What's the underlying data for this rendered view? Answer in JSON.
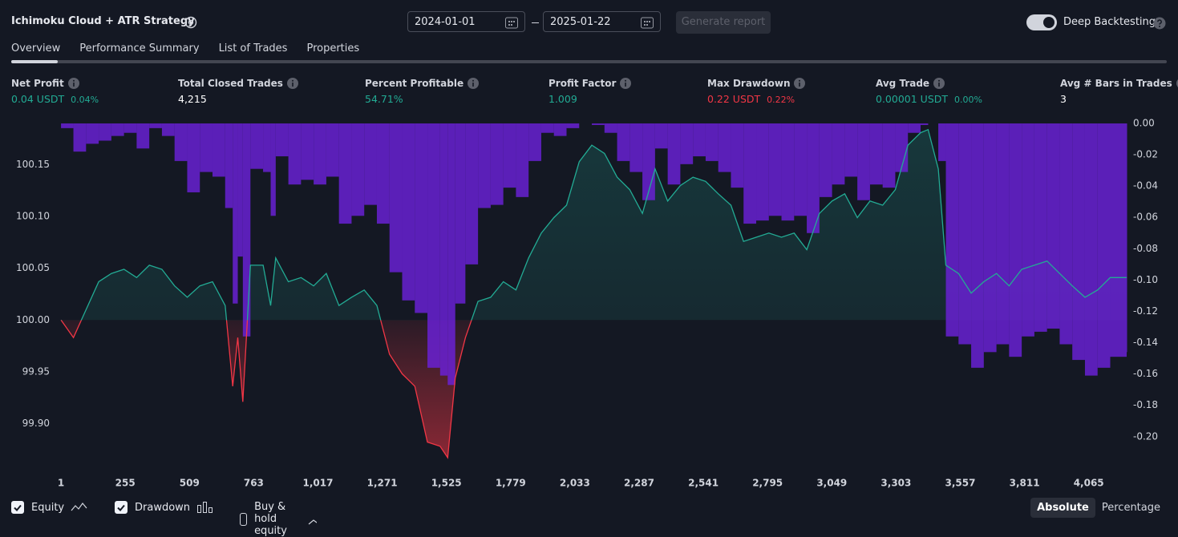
{
  "header": {
    "title": "Ichimoku Cloud + ATR Strategy",
    "start_date": "2024-01-01",
    "end_date": "2025-01-22",
    "generate_button": "Generate report",
    "toggle_label": "Deep Backtesting",
    "toggle_on": true
  },
  "tabs": [
    "Overview",
    "Performance Summary",
    "List of Trades",
    "Properties"
  ],
  "metrics": [
    {
      "label": "Net Profit",
      "value": "0.04 USDT",
      "percent": "0.04%",
      "color": "#22ab94"
    },
    {
      "label": "Total Closed Trades",
      "value": "4,215",
      "color": "#ffffff"
    },
    {
      "label": "Percent Profitable",
      "value": "54.71%",
      "color": "#22ab94"
    },
    {
      "label": "Profit Factor",
      "value": "1.009",
      "color": "#22ab94"
    },
    {
      "label": "Max Drawdown",
      "value": "0.22 USDT",
      "percent": "0.22%",
      "color": "#f23645"
    },
    {
      "label": "Avg Trade",
      "value": "0.00001 USDT",
      "percent": "0.00%",
      "color": "#22ab94"
    },
    {
      "label": "Avg # Bars in Trades",
      "value": "3",
      "color": "#ffffff"
    }
  ],
  "chart_data": {
    "type": "line",
    "x": [
      1,
      50,
      100,
      150,
      200,
      250,
      300,
      350,
      400,
      450,
      500,
      550,
      600,
      650,
      680,
      700,
      720,
      750,
      800,
      830,
      850,
      900,
      950,
      1000,
      1050,
      1100,
      1150,
      1200,
      1250,
      1300,
      1350,
      1400,
      1450,
      1500,
      1530,
      1560,
      1600,
      1650,
      1700,
      1750,
      1800,
      1850,
      1900,
      1950,
      2000,
      2050,
      2100,
      2150,
      2200,
      2250,
      2300,
      2350,
      2400,
      2450,
      2500,
      2550,
      2600,
      2650,
      2700,
      2750,
      2800,
      2850,
      2900,
      2950,
      3000,
      3050,
      3100,
      3150,
      3200,
      3250,
      3300,
      3350,
      3400,
      3430,
      3470,
      3500,
      3550,
      3600,
      3650,
      3700,
      3750,
      3800,
      3850,
      3900,
      3950,
      4000,
      4050,
      4100,
      4150,
      4215
    ],
    "series": [
      {
        "name": "Equity",
        "color": "#22ab94",
        "negative_color": "#f23645",
        "visible": true,
        "values": [
          100.0,
          99.983,
          100.01,
          100.037,
          100.045,
          100.049,
          100.041,
          100.053,
          100.049,
          100.033,
          100.022,
          100.033,
          100.037,
          100.014,
          99.936,
          99.983,
          99.921,
          100.053,
          100.053,
          100.014,
          100.06,
          100.037,
          100.041,
          100.033,
          100.045,
          100.014,
          100.022,
          100.029,
          100.014,
          99.967,
          99.948,
          99.936,
          99.882,
          99.878,
          99.867,
          99.944,
          99.983,
          100.018,
          100.022,
          100.037,
          100.029,
          100.06,
          100.084,
          100.099,
          100.111,
          100.153,
          100.169,
          100.161,
          100.138,
          100.126,
          100.103,
          100.146,
          100.115,
          100.13,
          100.138,
          100.134,
          100.122,
          100.111,
          100.076,
          100.08,
          100.084,
          100.08,
          100.084,
          100.068,
          100.103,
          100.115,
          100.122,
          100.099,
          100.115,
          100.111,
          100.126,
          100.169,
          100.181,
          100.184,
          100.146,
          100.053,
          100.045,
          100.026,
          100.037,
          100.045,
          100.033,
          100.049,
          100.053,
          100.057,
          100.045,
          100.033,
          100.022,
          100.029,
          100.041,
          100.041
        ]
      },
      {
        "name": "Drawdown",
        "color": "#6b21d9",
        "axis": "y2",
        "visible": true,
        "values": [
          -0.003,
          -0.018,
          -0.013,
          -0.011,
          -0.008,
          -0.006,
          -0.016,
          -0.003,
          -0.008,
          -0.024,
          -0.044,
          -0.031,
          -0.034,
          -0.054,
          -0.115,
          -0.085,
          -0.136,
          -0.029,
          -0.031,
          -0.059,
          -0.021,
          -0.039,
          -0.036,
          -0.039,
          -0.034,
          -0.064,
          -0.059,
          -0.052,
          -0.064,
          -0.095,
          -0.113,
          -0.121,
          -0.156,
          -0.161,
          -0.167,
          -0.115,
          -0.09,
          -0.054,
          -0.052,
          -0.041,
          -0.047,
          -0.024,
          -0.006,
          -0.008,
          -0.003,
          0,
          -0.001,
          -0.006,
          -0.024,
          -0.031,
          -0.049,
          -0.016,
          -0.039,
          -0.026,
          -0.021,
          -0.024,
          -0.031,
          -0.041,
          -0.064,
          -0.062,
          -0.059,
          -0.062,
          -0.059,
          -0.07,
          -0.047,
          -0.039,
          -0.034,
          -0.049,
          -0.039,
          -0.041,
          -0.031,
          -0.006,
          -0.001,
          0,
          -0.024,
          -0.136,
          -0.141,
          -0.156,
          -0.146,
          -0.141,
          -0.149,
          -0.136,
          -0.133,
          -0.131,
          -0.141,
          -0.151,
          -0.161,
          -0.156,
          -0.149,
          -0.146
        ]
      }
    ],
    "xlim": [
      -12,
      4215
    ],
    "xticks": [
      1,
      255,
      509,
      763,
      {
        "value": 1017,
        "label": "1,017"
      },
      {
        "value": 1271,
        "label": "1,271"
      },
      {
        "value": 1525,
        "label": "1,525"
      },
      {
        "value": 1779,
        "label": "1,779"
      },
      {
        "value": 2033,
        "label": "2,033"
      },
      {
        "value": 2287,
        "label": "2,287"
      },
      {
        "value": 2541,
        "label": "2,541"
      },
      {
        "value": 2795,
        "label": "2,795"
      },
      {
        "value": 3049,
        "label": "3,049"
      },
      {
        "value": 3303,
        "label": "3,303"
      },
      {
        "value": 3557,
        "label": "3,557"
      },
      {
        "value": 3811,
        "label": "3,811"
      },
      {
        "value": 4065,
        "label": "4,065"
      }
    ],
    "ylim": [
      99.86,
      100.19
    ],
    "yticks": [
      {
        "value": 99.9,
        "label": "99.90"
      },
      99.95,
      {
        "value": 100,
        "label": "100.00"
      },
      100.05,
      {
        "value": 100.1,
        "label": "100.10"
      },
      100.15
    ],
    "y2lim": [
      -0.218,
      0
    ],
    "y2ticks": [
      {
        "value": 0,
        "label": "0.00"
      },
      -0.02,
      -0.04,
      -0.06,
      -0.08,
      {
        "value": -0.1,
        "label": "-0.10"
      },
      -0.12,
      -0.14,
      -0.16,
      -0.18,
      {
        "value": -0.2,
        "label": "-0.20"
      }
    ],
    "grid": false
  },
  "buy_hold": {
    "label": "Buy & hold equity",
    "checked": false
  },
  "scale_modes": [
    "Absolute",
    "Percentage"
  ]
}
